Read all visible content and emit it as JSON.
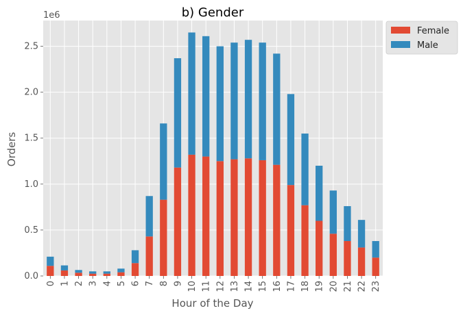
{
  "chart_data": {
    "type": "bar",
    "stacked": true,
    "title": "b) Gender",
    "xlabel": "Hour of the Day",
    "ylabel": "Orders",
    "y_offset_label": "1e6",
    "ylim": [
      0,
      2.78
    ],
    "yticks": [
      0.0,
      0.5,
      1.0,
      1.5,
      2.0,
      2.5
    ],
    "ytick_labels": [
      "0.0",
      "0.5",
      "1.0",
      "1.5",
      "2.0",
      "2.5"
    ],
    "grid": true,
    "legend_position": "outside top-right",
    "categories": [
      "0",
      "1",
      "2",
      "3",
      "4",
      "5",
      "6",
      "7",
      "8",
      "9",
      "10",
      "11",
      "12",
      "13",
      "14",
      "15",
      "16",
      "17",
      "18",
      "19",
      "20",
      "21",
      "22",
      "23"
    ],
    "series": [
      {
        "name": "Female",
        "color": "#E24A33",
        "values": [
          0.11,
          0.06,
          0.035,
          0.025,
          0.025,
          0.04,
          0.14,
          0.43,
          0.83,
          1.18,
          1.32,
          1.3,
          1.25,
          1.27,
          1.28,
          1.26,
          1.21,
          0.99,
          0.77,
          0.6,
          0.46,
          0.38,
          0.31,
          0.2
        ]
      },
      {
        "name": "Male",
        "color": "#348ABD",
        "values": [
          0.1,
          0.055,
          0.03,
          0.025,
          0.025,
          0.04,
          0.14,
          0.44,
          0.83,
          1.19,
          1.33,
          1.31,
          1.25,
          1.27,
          1.29,
          1.28,
          1.21,
          0.99,
          0.78,
          0.6,
          0.47,
          0.38,
          0.3,
          0.18
        ]
      }
    ]
  }
}
